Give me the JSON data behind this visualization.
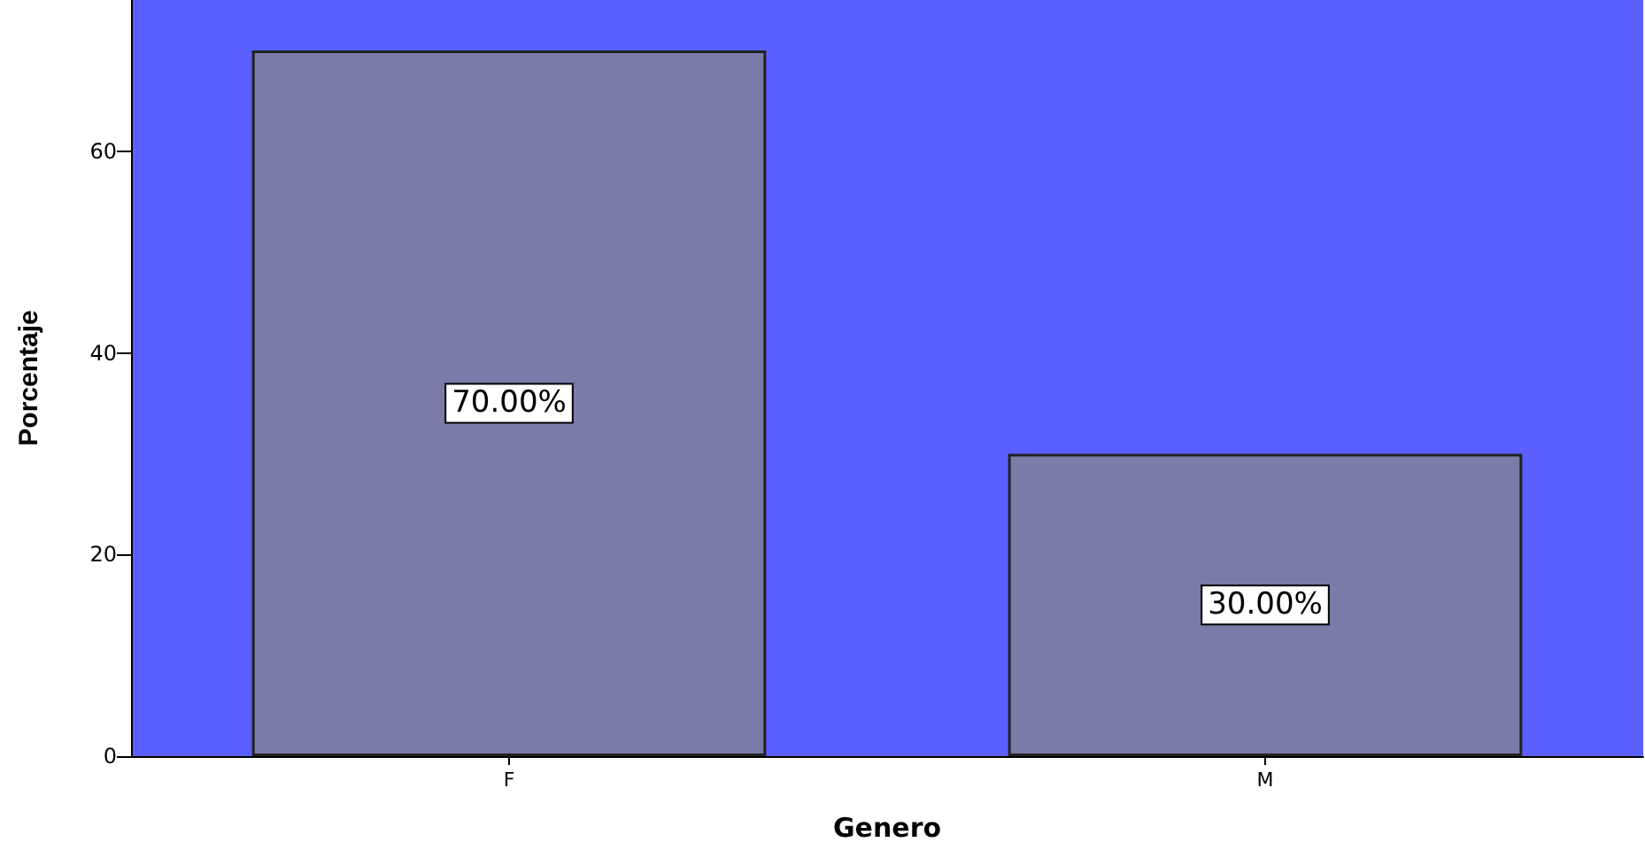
{
  "chart_data": {
    "type": "bar",
    "xlabel": "Genero",
    "ylabel": "Porcentaje",
    "categories": [
      "F",
      "M"
    ],
    "values": [
      70,
      30
    ],
    "value_labels": [
      "70.00%",
      "30.00%"
    ],
    "color": "#7b7ba8",
    "ylim": [
      0,
      75
    ],
    "yticks": [
      0,
      20,
      40,
      60
    ]
  }
}
